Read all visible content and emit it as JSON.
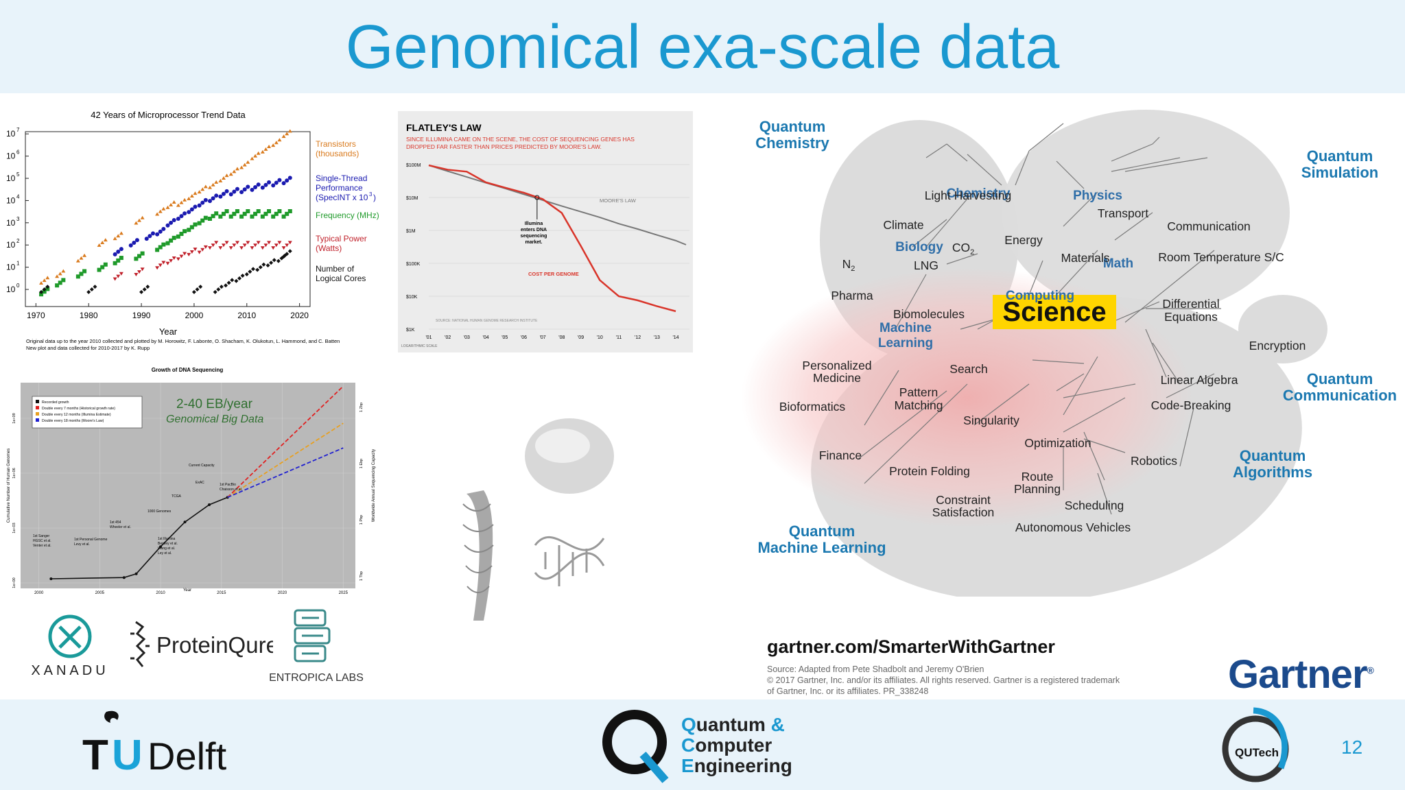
{
  "slide": {
    "title": "Genomical exa-scale data",
    "page_number": "12",
    "colors": {
      "title": "#1a98d0",
      "band": "#e8f3fa",
      "orange": "#d97a1d",
      "blue": "#1a1ab0",
      "green": "#1f9a2a",
      "red": "#c0202a"
    }
  },
  "chart_micro": {
    "title": "42 Years of Microprocessor Trend Data",
    "xlabel": "Year",
    "x_ticks": [
      "1970",
      "1980",
      "1990",
      "2000",
      "2010",
      "2020"
    ],
    "y_ticks": [
      "10",
      "10",
      "10",
      "10",
      "10",
      "10",
      "10",
      "10"
    ],
    "y_exps": [
      "0",
      "1",
      "2",
      "3",
      "4",
      "5",
      "6",
      "7"
    ],
    "legend": [
      {
        "line1": "Transistors",
        "line2": "(thousands)",
        "line3": "",
        "color": "#d97a1d"
      },
      {
        "line1": "Single-Thread",
        "line2": "Performance",
        "line3": "(SpecINT x 10",
        "color": "#1a1ab0"
      },
      {
        "line1": "Frequency (MHz)",
        "line2": "",
        "line3": "",
        "color": "#1f9a2a"
      },
      {
        "line1": "Typical Power",
        "line2": "(Watts)",
        "line3": "",
        "color": "#c0202a"
      },
      {
        "line1": "Number of",
        "line2": "Logical Cores",
        "line3": "",
        "color": "#111111"
      }
    ],
    "specint_exp": "3",
    "specint_close": ")",
    "note1": "Original data up to the year 2010 collected and plotted by M. Horowitz, F. Labonte, O. Shacham, K. Olukotun, L. Hammond, and C. Batten",
    "note2": "New plot and data collected for 2010-2017 by K. Rupp"
  },
  "chart_data": [
    {
      "type": "scatter",
      "title": "42 Years of Microprocessor Trend Data",
      "xlabel": "Year",
      "ylabel": "",
      "xlim": [
        1970,
        2020
      ],
      "ylim_log10": [
        0,
        7
      ],
      "series": [
        {
          "name": "Transistors (thousands)",
          "color": "#d97a1d",
          "x": [
            1971,
            1974,
            1978,
            1982,
            1985,
            1989,
            1993,
            1995,
            1997,
            1999,
            2001,
            2003,
            2005,
            2007,
            2009,
            2011,
            2013,
            2015,
            2017
          ],
          "y_log10": [
            0.4,
            0.7,
            1.4,
            2.1,
            2.4,
            3.1,
            3.5,
            3.8,
            3.9,
            4.2,
            4.5,
            4.7,
            5.0,
            5.3,
            5.6,
            6.0,
            6.3,
            6.6,
            7.0
          ]
        },
        {
          "name": "Single-Thread Performance (SpecINT x 10^3)",
          "color": "#1a1ab0",
          "x": [
            1985,
            1988,
            1991,
            1993,
            1995,
            1997,
            1999,
            2001,
            2003,
            2005,
            2007,
            2009,
            2011,
            2013,
            2015,
            2017
          ],
          "y_log10": [
            1.7,
            2.1,
            2.4,
            2.6,
            3.0,
            3.3,
            3.6,
            3.9,
            4.1,
            4.3,
            4.4,
            4.5,
            4.6,
            4.7,
            4.8,
            4.9
          ]
        },
        {
          "name": "Frequency (MHz)",
          "color": "#1f9a2a",
          "x": [
            1971,
            1974,
            1978,
            1982,
            1985,
            1989,
            1993,
            1995,
            1997,
            1999,
            2001,
            2003,
            2005,
            2007,
            2009,
            2011,
            2013,
            2015,
            2017
          ],
          "y_log10": [
            -0.1,
            0.3,
            0.7,
            1.0,
            1.3,
            1.5,
            1.9,
            2.2,
            2.5,
            2.8,
            3.1,
            3.3,
            3.4,
            3.4,
            3.4,
            3.4,
            3.4,
            3.4,
            3.4
          ]
        },
        {
          "name": "Typical Power (Watts)",
          "color": "#c0202a",
          "x": [
            1985,
            1989,
            1993,
            1995,
            1997,
            1999,
            2001,
            2003,
            2005,
            2007,
            2009,
            2011,
            2013,
            2015,
            2017
          ],
          "y_log10": [
            0.6,
            0.8,
            1.1,
            1.3,
            1.5,
            1.7,
            1.8,
            2.0,
            2.0,
            2.0,
            2.0,
            2.0,
            2.0,
            2.0,
            2.0
          ]
        },
        {
          "name": "Number of Logical Cores",
          "color": "#111111",
          "x": [
            1971,
            1980,
            1990,
            2000,
            2004,
            2006,
            2008,
            2010,
            2012,
            2014,
            2016,
            2017
          ],
          "y_log10": [
            0,
            0,
            0,
            0,
            0,
            0.3,
            0.5,
            0.8,
            1.0,
            1.2,
            1.4,
            1.6
          ]
        }
      ]
    },
    {
      "type": "line",
      "title": "FLATLEY'S LAW",
      "xlabel": "",
      "ylabel": "",
      "categories": [
        "'01",
        "'02",
        "'03",
        "'04",
        "'05",
        "'06",
        "'07",
        "'08",
        "'09",
        "'10",
        "'11",
        "'12",
        "'13",
        "'14"
      ],
      "y_scale": "log",
      "y_ticks": [
        "$100M",
        "$10M",
        "$1M",
        "$100K",
        "$10K",
        "$1K"
      ],
      "series": [
        {
          "name": "MOORE'S LAW",
          "color": "#777777",
          "values": [
            95000000,
            63000000,
            42000000,
            28000000,
            19000000,
            12500000,
            8300000,
            5500000,
            3700000,
            2500000,
            1600000,
            1100000,
            730000,
            490000
          ]
        },
        {
          "name": "COST PER GENOME",
          "color": "#d9352a",
          "values": [
            95000000,
            70000000,
            61000000,
            29000000,
            20000000,
            14000000,
            8900000,
            3400000,
            340000,
            31000,
            10000,
            7500,
            5000,
            3500
          ]
        }
      ]
    },
    {
      "type": "line",
      "title": "Growth of DNA Sequencing",
      "xlabel": "Year",
      "ylabel": "Cumulative Number of Human Genomes",
      "x_ticks": [
        "2000",
        "2005",
        "2010",
        "2015",
        "2020",
        "2025"
      ],
      "series": [
        {
          "name": "Recorded growth",
          "color": "#111111",
          "x": [
            2001,
            2007,
            2008,
            2010,
            2012,
            2014,
            2015.5
          ],
          "y_log10": [
            0,
            0.05,
            0.2,
            1.3,
            2.3,
            3.0,
            3.3
          ]
        },
        {
          "name": "Double every 7 months (Historical growth rate)",
          "color": "#e02020",
          "x": [
            2015.5,
            2025
          ],
          "y_log10": [
            3.3,
            7.8
          ]
        },
        {
          "name": "Double every 12 months (Illumina Estimate)",
          "color": "#e8a020",
          "x": [
            2015.5,
            2025
          ],
          "y_log10": [
            3.3,
            6.3
          ]
        },
        {
          "name": "Double every 18 months (Moore's Law)",
          "color": "#2020d0",
          "x": [
            2015.5,
            2025
          ],
          "y_log10": [
            3.3,
            5.3
          ]
        }
      ]
    }
  ],
  "chart_flatley": {
    "title": "FLATLEY'S LAW",
    "subtitle1": "SINCE ILLUMINA CAME ON THE SCENE, THE COST OF SEQUENCING GENES HAS",
    "subtitle2": "DROPPED FAR FASTER THAN PRICES PREDICTED BY MOORE'S LAW.",
    "y_labels": [
      "$100M",
      "$10M",
      "$1M",
      "$100K",
      "$10K",
      "$1K"
    ],
    "x_labels": [
      "'01",
      "'02",
      "'03",
      "'04",
      "'05",
      "'06",
      "'07",
      "'08",
      "'09",
      "'10",
      "'11",
      "'12",
      "'13",
      "'14"
    ],
    "moore_label": "MOORE'S LAW",
    "cost_label": "COST PER GENOME",
    "annotation": [
      "Illumina",
      "enters DNA",
      "sequencing",
      "market."
    ],
    "source": "SOURCE: NATIONAL HUMAN GENOME RESEARCH INSTITUTE",
    "scale_note": "LOGARITHMIC SCALE"
  },
  "chart_dna": {
    "title": "Growth of DNA Sequencing",
    "xlabel": "Year",
    "ylabel": "Cumulative Number of Human Genomes",
    "ylabel_right": "Worldwide Annual Sequencing Capacity",
    "overlay1": "2-40 EB/year",
    "overlay2": "Genomical Big Data",
    "legend": [
      "Recorded growth",
      "Double every 7 months (Historical growth rate)",
      "Double every 12 months (Illumina Estimate)",
      "Double every 18 months (Moore's Law)"
    ],
    "x_ticks": [
      "2000",
      "2005",
      "2010",
      "2015",
      "2020",
      "2025"
    ],
    "y_ticks": [
      "1e+00",
      "1e+03",
      "1e+06",
      "1e+09"
    ],
    "y_ticks_right": [
      "1 Tbp",
      "1 Pbp",
      "1 Ebp",
      "1 Zbp"
    ],
    "milestones": [
      "1st Sanger",
      "HGSC et al.",
      "Venter et al.",
      "1st Personal Genome",
      "Levy et al.",
      "1st 454",
      "Wheeler et al.",
      "1st Illumina",
      "Bentley et al.",
      "Wang et al.",
      "Ley et al.",
      "1000 Genomes",
      "TCGA",
      "ExAC",
      "1st PacBio",
      "Chaisson et al.",
      "Current Capacity"
    ]
  },
  "logos": {
    "xanadu": "XANADU",
    "proteinqure": "ProteinQure",
    "entropica": "ENTROPICA LABS"
  },
  "science_map": {
    "center": "Science",
    "regions": [
      {
        "l1": "Quantum",
        "l2": "Chemistry"
      },
      {
        "l1": "Quantum",
        "l2": "Simulation"
      },
      {
        "l1": "Quantum",
        "l2": "Communication"
      },
      {
        "l1": "Quantum",
        "l2": "Algorithms"
      },
      {
        "l1": "Quantum",
        "l2": "Machine Learning"
      }
    ],
    "hubs": [
      "Chemistry",
      "Physics",
      "Biology",
      "Math",
      "Computing",
      "Machine",
      "Learning"
    ],
    "terms": [
      "Light Harvesting",
      "Transport",
      "Climate",
      "Energy",
      "Communication",
      "CO",
      "Materials",
      "Room Temperature S/C",
      "N",
      "LNG",
      "Pharma",
      "Biomolecules",
      "Differential",
      "Equations",
      "Encryption",
      "Personalized",
      "Medicine",
      "Search",
      "Linear Algebra",
      "Pattern",
      "Matching",
      "Bioformatics",
      "Code-Breaking",
      "Singularity",
      "Optimization",
      "Finance",
      "Robotics",
      "Protein Folding",
      "Route",
      "Planning",
      "Constraint",
      "Satisfaction",
      "Scheduling",
      "Autonomous Vehicles"
    ],
    "sub2": "2",
    "url": "gartner.com/SmarterWithGartner",
    "source1": "Source: Adapted from Pete Shadbolt and Jeremy O'Brien",
    "source2": "© 2017 Gartner, Inc. and/or its affiliates. All rights reserved. Gartner is a registered trademark",
    "source3": "of Gartner, Inc. or its affiliates. PR_338248",
    "logo": "Gartner",
    "logo_mark": "®"
  },
  "footer": {
    "tudelft_t": "T",
    "tudelft_u": "U",
    "tudelft_rest": "Delft",
    "qce_line1a": "Q",
    "qce_line1b": "uantum",
    "qce_amp": " &",
    "qce_line2a": "C",
    "qce_line2b": "omputer",
    "qce_line3a": "E",
    "qce_line3b": "ngineering",
    "qutech": "QUTech"
  }
}
